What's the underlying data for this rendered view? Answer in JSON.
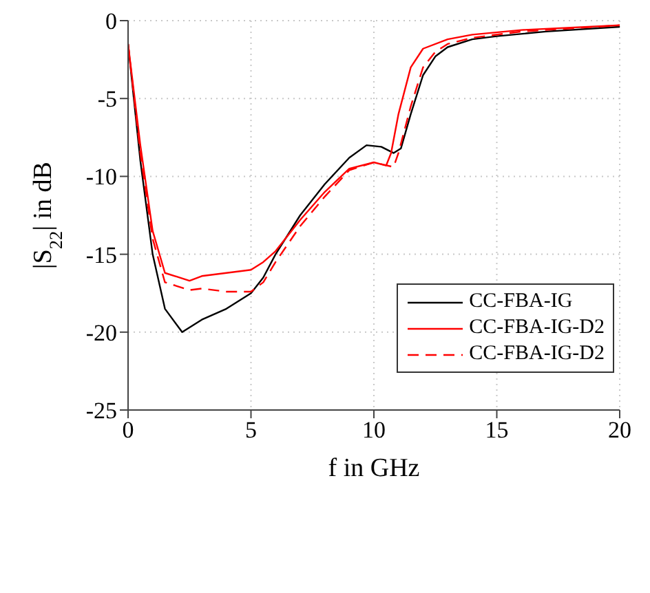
{
  "chart_data": {
    "type": "line",
    "xlabel": "f in GHz",
    "ylabel": "|S$_{22}$| in dB",
    "xlim": [
      0,
      20
    ],
    "xticks": [
      0,
      5,
      10,
      15,
      20
    ],
    "ylim": [
      -25,
      0
    ],
    "yticks": [
      -25,
      -20,
      -15,
      -10,
      -5,
      0
    ],
    "grid": true,
    "legend": "right",
    "marker": "none",
    "series": [
      {
        "name": "CC-FBA-IG",
        "color": "#000000",
        "line_style": "solid",
        "x": [
          0,
          0.5,
          1,
          1.5,
          2.2,
          3,
          4,
          5,
          5.5,
          6,
          7,
          8,
          9,
          9.7,
          10.3,
          10.8,
          11.1,
          11.5,
          12,
          12.5,
          13,
          14,
          15,
          17,
          20
        ],
        "values": [
          -1.5,
          -9,
          -15,
          -18.5,
          -20,
          -19.2,
          -18.5,
          -17.5,
          -16.5,
          -15,
          -12.5,
          -10.5,
          -8.8,
          -8,
          -8.1,
          -8.5,
          -8.2,
          -6,
          -3.5,
          -2.3,
          -1.7,
          -1.2,
          -1,
          -0.7,
          -0.4
        ]
      },
      {
        "name": "CC-FBA-IG-D2",
        "color": "#ff0000",
        "line_style": "solid",
        "x": [
          0,
          0.5,
          1,
          1.5,
          2.5,
          3,
          4,
          5,
          5.5,
          6,
          7,
          8,
          9,
          10,
          10.5,
          10.7,
          11,
          11.5,
          12,
          13,
          14,
          16,
          20
        ],
        "values": [
          -1.5,
          -8,
          -13.5,
          -16.2,
          -16.7,
          -16.4,
          -16.2,
          -16,
          -15.5,
          -14.8,
          -12.8,
          -11,
          -9.5,
          -9.1,
          -9.3,
          -8.5,
          -6,
          -3,
          -1.8,
          -1.2,
          -0.9,
          -0.6,
          -0.3
        ]
      },
      {
        "name": "CC-FBA-IG-D2",
        "color": "#ff0000",
        "line_style": "dashed",
        "x": [
          0,
          0.5,
          1,
          1.5,
          2.5,
          3,
          4,
          5,
          5.5,
          6,
          7,
          8,
          9,
          10,
          10.8,
          11,
          11.5,
          12,
          12.5,
          13,
          14,
          16,
          20
        ],
        "values": [
          -1.5,
          -8.5,
          -14,
          -16.8,
          -17.3,
          -17.2,
          -17.4,
          -17.4,
          -16.8,
          -15.5,
          -13.2,
          -11.3,
          -9.6,
          -9.1,
          -9.4,
          -8.5,
          -5.5,
          -3,
          -2,
          -1.5,
          -1.1,
          -0.7,
          -0.3
        ]
      }
    ]
  }
}
